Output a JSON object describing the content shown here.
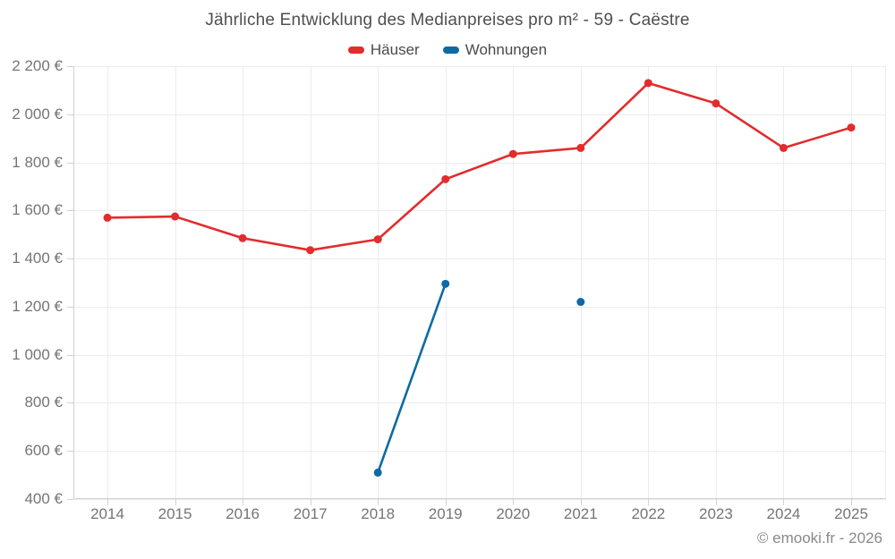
{
  "chart_data": {
    "type": "line",
    "title": "Jährliche Entwicklung des Medianpreises pro m² - 59 - Caëstre",
    "x": [
      2014,
      2015,
      2016,
      2017,
      2018,
      2019,
      2020,
      2021,
      2022,
      2023,
      2024,
      2025
    ],
    "series": [
      {
        "name": "Häuser",
        "color": "#e22c2d",
        "values": [
          1570,
          1575,
          1485,
          1435,
          1480,
          1730,
          1835,
          1860,
          2130,
          2045,
          1860,
          1945
        ]
      },
      {
        "name": "Wohnungen",
        "color": "#0e6aa5",
        "values": [
          null,
          null,
          null,
          null,
          510,
          1295,
          null,
          1220,
          null,
          null,
          null,
          null
        ]
      }
    ],
    "ylim": [
      400,
      2200
    ],
    "y_ticks": [
      400,
      600,
      800,
      1000,
      1200,
      1400,
      1600,
      1800,
      2000,
      2200
    ],
    "y_tick_labels": [
      "400 €",
      "600 €",
      "800 €",
      "1 000 €",
      "1 200 €",
      "1 400 €",
      "1 600 €",
      "1 800 €",
      "2 000 €",
      "2 200 €"
    ],
    "grid": true,
    "legend_position": "top",
    "marker": "circle"
  },
  "footer": {
    "copyright": "© emooki.fr - 2026"
  },
  "colors": {
    "background": "#ffffff",
    "grid": "#ececec",
    "axis": "#d2d2d2",
    "tick_text": "#757575",
    "title_text": "#4f4f4f",
    "legend_text": "#4a4a4a",
    "footer_text": "#8a8a8a"
  }
}
